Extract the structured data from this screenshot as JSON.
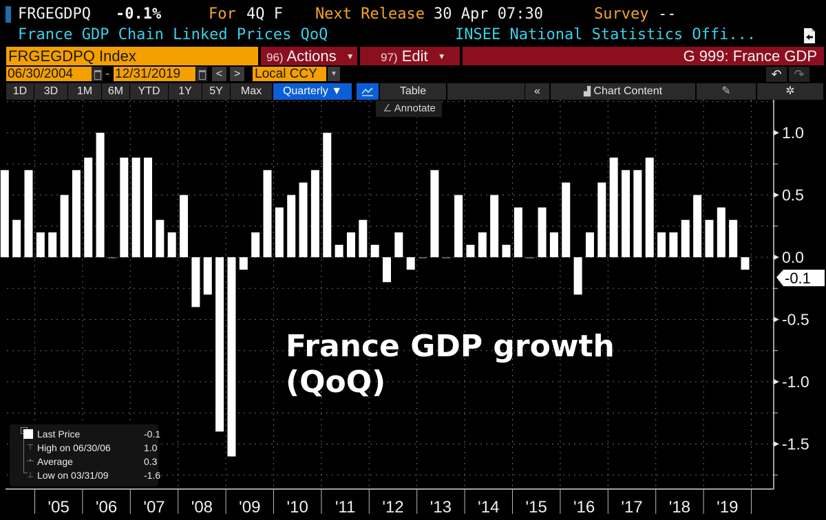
{
  "header": {
    "ticker": "FRGEGDPQ",
    "last_change": "-0.1%",
    "for_label": "For",
    "for_value": "4Q F",
    "next_release_label": "Next Release",
    "next_release_value": "30 Apr 07:30",
    "survey_label": "Survey",
    "survey_value": "--",
    "description": "France GDP Chain Linked Prices QoQ",
    "source": "INSEE National Statistics Offi..."
  },
  "toolbar_top": {
    "security": "FRGEGDPQ Index",
    "actions_num": "96)",
    "actions_label": "Actions",
    "edit_num": "97)",
    "edit_label": "Edit",
    "function_title": "G 999: France GDP"
  },
  "date_bar": {
    "start_date": "06/30/2004",
    "end_date": "12/31/2019",
    "dash": "-",
    "prev": "<",
    "next": ">",
    "currency": "Local CCY",
    "undo": "↶",
    "redo": "↷"
  },
  "range_bar": {
    "ranges": [
      "1D",
      "3D",
      "1M",
      "6M",
      "YTD",
      "1Y",
      "5Y",
      "Max"
    ],
    "frequency": "Quarterly ▼",
    "table_label": "Table",
    "collapse": "«",
    "chart_content_label": "Chart Content",
    "annotate_label": "Annotate"
  },
  "legend": {
    "last_price_label": "Last Price",
    "last_price_value": "-0.1",
    "high_label": "High on 06/30/06",
    "high_value": "1.0",
    "average_label": "Average",
    "average_value": "0.3",
    "low_label": "Low on 03/31/09",
    "low_value": "-1.6"
  },
  "chart_data": {
    "type": "bar",
    "title": "France GDP growth (QoQ)",
    "annotation_line1": "France GDP growth",
    "annotation_line2": "(QoQ)",
    "xlabel": "",
    "ylabel": "",
    "ylim": [
      -1.85,
      1.15
    ],
    "yticks": [
      1.0,
      0.5,
      0.0,
      -0.5,
      -1.0,
      -1.5
    ],
    "ytick_labels": [
      "1.0",
      "0.5",
      "0.0",
      "-0.5",
      "-1.0",
      "-1.5"
    ],
    "xtick_labels": [
      "'05",
      "'06",
      "'07",
      "'08",
      "'09",
      "'10",
      "'11",
      "'12",
      "'13",
      "'14",
      "'15",
      "'16",
      "'17",
      "'18",
      "'19"
    ],
    "last_value_label": "-0.1",
    "grid": true,
    "legend_position": "bottom-left",
    "bar_color": "#ffffff",
    "start_quarter": "2004Q2",
    "categories": [
      "2004Q2",
      "2004Q3",
      "2004Q4",
      "2005Q1",
      "2005Q2",
      "2005Q3",
      "2005Q4",
      "2006Q1",
      "2006Q2",
      "2006Q3",
      "2006Q4",
      "2007Q1",
      "2007Q2",
      "2007Q3",
      "2007Q4",
      "2008Q1",
      "2008Q2",
      "2008Q3",
      "2008Q4",
      "2009Q1",
      "2009Q2",
      "2009Q3",
      "2009Q4",
      "2010Q1",
      "2010Q2",
      "2010Q3",
      "2010Q4",
      "2011Q1",
      "2011Q2",
      "2011Q3",
      "2011Q4",
      "2012Q1",
      "2012Q2",
      "2012Q3",
      "2012Q4",
      "2013Q1",
      "2013Q2",
      "2013Q3",
      "2013Q4",
      "2014Q1",
      "2014Q2",
      "2014Q3",
      "2014Q4",
      "2015Q1",
      "2015Q2",
      "2015Q3",
      "2015Q4",
      "2016Q1",
      "2016Q2",
      "2016Q3",
      "2016Q4",
      "2017Q1",
      "2017Q2",
      "2017Q3",
      "2017Q4",
      "2018Q1",
      "2018Q2",
      "2018Q3",
      "2018Q4",
      "2019Q1",
      "2019Q2",
      "2019Q3",
      "2019Q4"
    ],
    "values": [
      0.7,
      0.3,
      0.7,
      0.2,
      0.2,
      0.5,
      0.7,
      0.8,
      1.0,
      0.0,
      0.8,
      0.8,
      0.8,
      0.3,
      0.2,
      0.5,
      -0.4,
      -0.3,
      -1.4,
      -1.6,
      -0.1,
      0.2,
      0.7,
      0.4,
      0.5,
      0.6,
      0.7,
      1.0,
      0.1,
      0.2,
      0.3,
      0.1,
      -0.2,
      0.2,
      -0.1,
      0.0,
      0.7,
      0.0,
      0.5,
      0.1,
      0.2,
      0.5,
      0.1,
      0.4,
      0.0,
      0.4,
      0.2,
      0.6,
      -0.3,
      0.2,
      0.6,
      0.8,
      0.7,
      0.7,
      0.8,
      0.2,
      0.2,
      0.3,
      0.5,
      0.3,
      0.4,
      0.3,
      -0.1
    ]
  }
}
